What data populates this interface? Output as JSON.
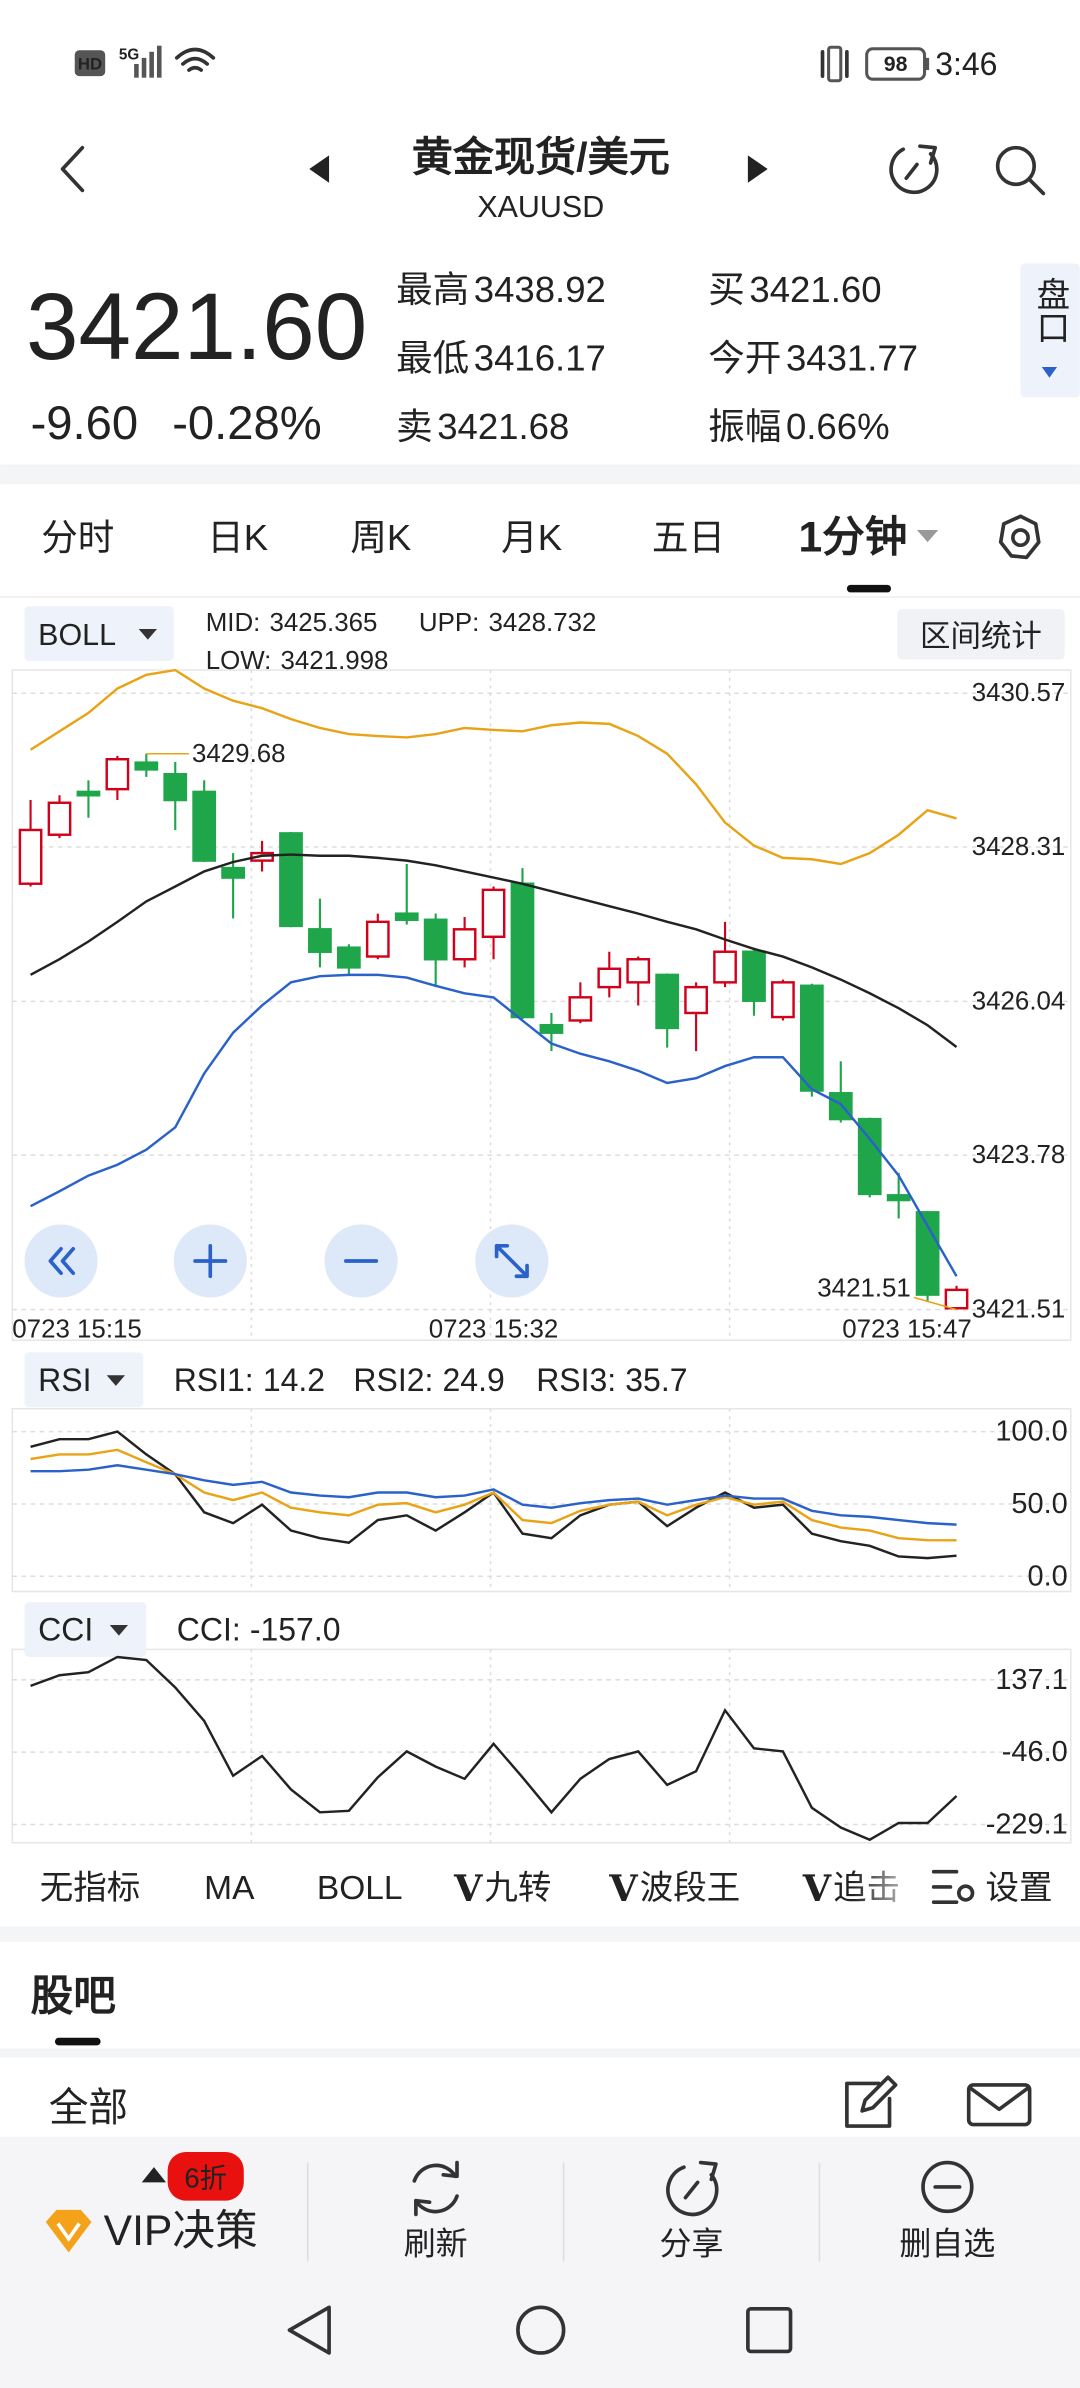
{
  "status_bar": {
    "left": [
      "HD",
      "5G"
    ],
    "battery": "98",
    "time": "3:46"
  },
  "header": {
    "title": "黄金现货/美元",
    "subtitle": "XAUUSD"
  },
  "quote": {
    "price": "3421.60",
    "change": "-9.60",
    "change_pct": "-0.28%",
    "stats": [
      {
        "label": "最高",
        "value": "3438.92"
      },
      {
        "label": "买",
        "value": "3421.60"
      },
      {
        "label": "最低",
        "value": "3416.17"
      },
      {
        "label": "今开",
        "value": "3431.77"
      },
      {
        "label": "卖",
        "value": "3421.68"
      },
      {
        "label": "振幅",
        "value": "0.66%"
      }
    ],
    "side_button": "盘口"
  },
  "period_tabs": {
    "items": [
      "分时",
      "日K",
      "周K",
      "月K",
      "五日",
      "1分钟"
    ],
    "active": 5
  },
  "chart_data": [
    {
      "type": "candlestick",
      "indicator": "BOLL",
      "button": "区间统计",
      "up_color": "#d0021b",
      "down_color": "#1fa64a",
      "x_labels": [
        "0723  15:15",
        "0723  15:32",
        "0723  15:47"
      ],
      "open": [
        3427.77,
        3428.49,
        3429.12,
        3429.16,
        3429.55,
        3429.38,
        3429.12,
        3428.0,
        3428.11,
        3428.51,
        3427.1,
        3426.83,
        3426.7,
        3427.33,
        3427.24,
        3426.66,
        3426.99,
        3427.77,
        3425.69,
        3425.76,
        3426.25,
        3426.32,
        3426.43,
        3425.87,
        3426.32,
        3426.77,
        3425.81,
        3426.27,
        3424.69,
        3424.31,
        3423.19,
        3422.94,
        3421.53
      ],
      "high": [
        3429.0,
        3429.07,
        3429.29,
        3429.65,
        3429.68,
        3429.56,
        3429.29,
        3428.22,
        3428.4,
        3428.53,
        3427.55,
        3426.88,
        3427.33,
        3428.06,
        3427.33,
        3427.28,
        3427.73,
        3428.0,
        3425.87,
        3426.32,
        3426.77,
        3426.7,
        3426.45,
        3426.32,
        3427.21,
        3426.83,
        3426.36,
        3426.3,
        3425.16,
        3424.33,
        3423.52,
        3422.96,
        3421.86
      ],
      "low": [
        3427.73,
        3428.44,
        3428.74,
        3429.0,
        3429.34,
        3428.56,
        3428.09,
        3427.26,
        3427.95,
        3427.13,
        3426.54,
        3426.43,
        3426.66,
        3427.17,
        3426.25,
        3426.54,
        3426.66,
        3425.78,
        3425.31,
        3425.72,
        3426.1,
        3425.98,
        3425.36,
        3425.31,
        3426.25,
        3425.83,
        3425.76,
        3424.64,
        3424.26,
        3423.16,
        3422.85,
        3421.62,
        3421.51
      ],
      "close": [
        3428.56,
        3428.96,
        3429.07,
        3429.6,
        3429.45,
        3429.0,
        3428.11,
        3427.86,
        3428.22,
        3427.15,
        3426.77,
        3426.54,
        3427.21,
        3427.24,
        3426.66,
        3427.1,
        3427.68,
        3425.81,
        3425.58,
        3426.1,
        3426.52,
        3426.66,
        3425.65,
        3426.25,
        3426.77,
        3426.05,
        3426.32,
        3424.73,
        3424.31,
        3423.21,
        3423.12,
        3421.73,
        3421.8
      ],
      "series": [
        {
          "name": "MID:",
          "value": 3425.365,
          "color": "#222222",
          "values": [
            3426.43,
            3426.66,
            3426.92,
            3427.21,
            3427.51,
            3427.73,
            3427.95,
            3428.09,
            3428.18,
            3428.2,
            3428.18,
            3428.18,
            3428.15,
            3428.11,
            3428.04,
            3427.95,
            3427.86,
            3427.77,
            3427.66,
            3427.55,
            3427.44,
            3427.33,
            3427.21,
            3427.1,
            3426.95,
            3426.81,
            3426.7,
            3426.54,
            3426.36,
            3426.16,
            3425.94,
            3425.69,
            3425.37
          ]
        },
        {
          "name": "UPP:",
          "value": 3428.732,
          "color": "#e8a317",
          "values": [
            3429.74,
            3430.01,
            3430.28,
            3430.64,
            3430.84,
            3430.91,
            3430.64,
            3430.46,
            3430.35,
            3430.19,
            3430.06,
            3429.97,
            3429.94,
            3429.92,
            3429.97,
            3430.06,
            3430.03,
            3430.01,
            3430.1,
            3430.14,
            3430.12,
            3429.94,
            3429.68,
            3429.23,
            3428.67,
            3428.33,
            3428.15,
            3428.13,
            3428.06,
            3428.22,
            3428.49,
            3428.85,
            3428.73
          ]
        },
        {
          "name": "LOW:",
          "value": 3421.998,
          "color": "#2a62c9",
          "values": [
            3423.03,
            3423.25,
            3423.48,
            3423.64,
            3423.86,
            3424.19,
            3424.98,
            3425.58,
            3425.98,
            3426.32,
            3426.41,
            3426.43,
            3426.43,
            3426.39,
            3426.27,
            3426.16,
            3426.1,
            3425.76,
            3425.42,
            3425.27,
            3425.16,
            3425.02,
            3424.84,
            3424.91,
            3425.09,
            3425.22,
            3425.22,
            3424.75,
            3424.53,
            3424.02,
            3423.48,
            3422.74,
            3422.0
          ]
        }
      ],
      "annotations": [
        3429.68,
        3421.51
      ],
      "annotation_color": "#e8a317",
      "ylim": [
        3421.06,
        3430.91
      ],
      "yticks": [
        3430.57,
        3428.31,
        3426.04,
        3423.78,
        3421.51
      ],
      "grid": true
    },
    {
      "type": "line",
      "indicator": "RSI",
      "series": [
        {
          "name": "RSI1:",
          "value": 14.2,
          "color": "#222222",
          "values": [
            89.5,
            94.7,
            94.7,
            100.0,
            84.2,
            70.5,
            44.2,
            36.8,
            49.5,
            31.6,
            26.3,
            23.2,
            38.9,
            42.1,
            31.6,
            44.2,
            57.9,
            29.5,
            26.3,
            42.1,
            49.5,
            51.6,
            34.7,
            47.4,
            57.9,
            47.4,
            49.5,
            29.5,
            24.2,
            21.1,
            13.7,
            12.5,
            14.2
          ]
        },
        {
          "name": "RSI2:",
          "value": 24.9,
          "color": "#e8a317",
          "values": [
            81.1,
            84.2,
            84.2,
            87.4,
            78.9,
            70.5,
            57.9,
            52.6,
            57.9,
            47.4,
            44.2,
            42.1,
            49.5,
            50.5,
            44.2,
            49.5,
            57.9,
            38.9,
            36.8,
            45.3,
            49.5,
            51.6,
            42.1,
            49.5,
            54.7,
            49.5,
            51.6,
            38.9,
            33.7,
            31.6,
            26.3,
            25.0,
            24.9
          ]
        },
        {
          "name": "RSI3:",
          "value": 35.7,
          "color": "#2a62c9",
          "values": [
            72.6,
            72.6,
            73.7,
            76.8,
            73.7,
            70.5,
            66.3,
            63.2,
            65.3,
            57.9,
            55.8,
            54.7,
            57.9,
            57.9,
            54.7,
            55.8,
            60.0,
            49.5,
            47.4,
            50.5,
            52.6,
            53.7,
            49.5,
            52.6,
            55.8,
            53.7,
            53.7,
            45.3,
            42.1,
            41.1,
            38.9,
            36.8,
            35.7
          ]
        }
      ],
      "ylim": [
        -10.5,
        115.8
      ],
      "yticks": [
        {
          "value": 100,
          "label": "100.0"
        },
        {
          "value": 50,
          "label": "50.0"
        },
        {
          "value": 0,
          "label": "0.0"
        }
      ],
      "grid": true
    },
    {
      "type": "line",
      "indicator": "CCI",
      "series": [
        {
          "name": "CCI:",
          "value": -157,
          "value_label": "-157.0",
          "color": "#222222",
          "values": [
            121.7,
            148.7,
            156.4,
            194.9,
            187.2,
            117.8,
            33.0,
            -105.8,
            -55.7,
            -140.5,
            -198.3,
            -194.4,
            -109.6,
            -44.1,
            -82.6,
            -113.5,
            -24.8,
            -109.6,
            -198.3,
            -113.5,
            -63.4,
            -44.1,
            -128.9,
            -94.2,
            60.0,
            -36.4,
            -44.1,
            -186.7,
            -236.8,
            -267.7,
            -225.3,
            -225.3,
            -157.0
          ]
        }
      ],
      "ylim": [
        -275.4,
        214.2
      ],
      "yticks": [
        137.1,
        {
          "value": -46,
          "label": "-46.0"
        },
        -229.1
      ],
      "grid": true
    }
  ],
  "indicator_tabs": {
    "items": [
      {
        "label": "无指标"
      },
      {
        "label": "MA"
      },
      {
        "label": "BOLL"
      },
      {
        "badge": "V",
        "label": "九转"
      },
      {
        "badge": "V",
        "label": "波段王"
      },
      {
        "badge": "V",
        "label": "追击"
      }
    ],
    "active": 2,
    "settings": "设置"
  },
  "community": {
    "title": "股吧",
    "filter": "全部"
  },
  "bottom_bar": {
    "vip_discount": "6折",
    "vip": "VIP决策",
    "actions": [
      "刷新",
      "分享",
      "删自选"
    ]
  }
}
